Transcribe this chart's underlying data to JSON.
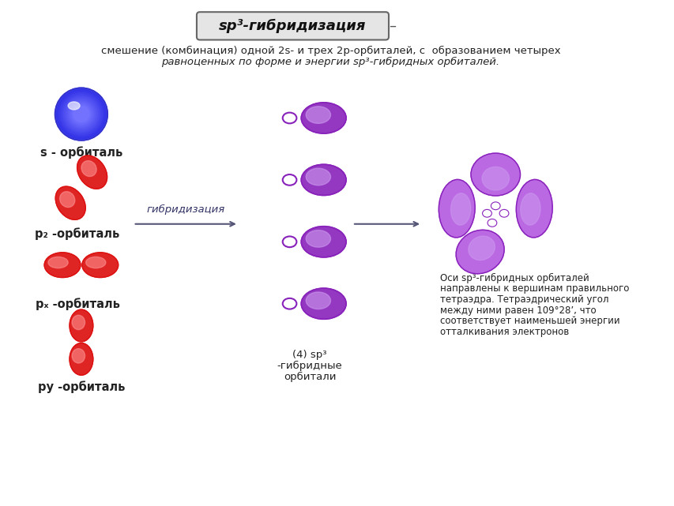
{
  "title": "sp³-гибридизация",
  "subtitle_line1": "смешение (комбинация) одной 2s- и трех 2p-орбиталей, с  образованием четырех",
  "subtitle_line2": "равноценных по форме и энергии sp³-гибридных орбиталей.",
  "label_s": "s - орбиталь",
  "label_pz": "p₂ -орбиталь",
  "label_px": "pₓ -орбиталь",
  "label_py": "pу -орбиталь",
  "arrow_label": "гибридизация",
  "hybrid_label_line1": "(4) sp³",
  "hybrid_label_line2": "-гибридные",
  "hybrid_label_line3": "орбитали",
  "result_text_line1": "Оси sp³-гибридных орбиталей",
  "result_text_line2": "направлены к вершинам правильного",
  "result_text_line3": "тетраэдра. Тетраэдрический угол",
  "result_text_line4": "между ними равен 109°28’, что",
  "result_text_line5": "соответствует наименьшей энергии",
  "result_text_line6": "отталкивания электронов",
  "s_color_main": "#3333cc",
  "s_color_light": "#8888ff",
  "p_color_main": "#dd1111",
  "p_color_light": "#ff9999",
  "hybrid_color_main": "#8822bb",
  "hybrid_color_mid": "#aa44dd",
  "hybrid_color_light": "#cc99ee",
  "text_color": "#222222",
  "arrow_color": "#555577",
  "bg_color": "#ffffff",
  "border_color": "#aaaaaa"
}
